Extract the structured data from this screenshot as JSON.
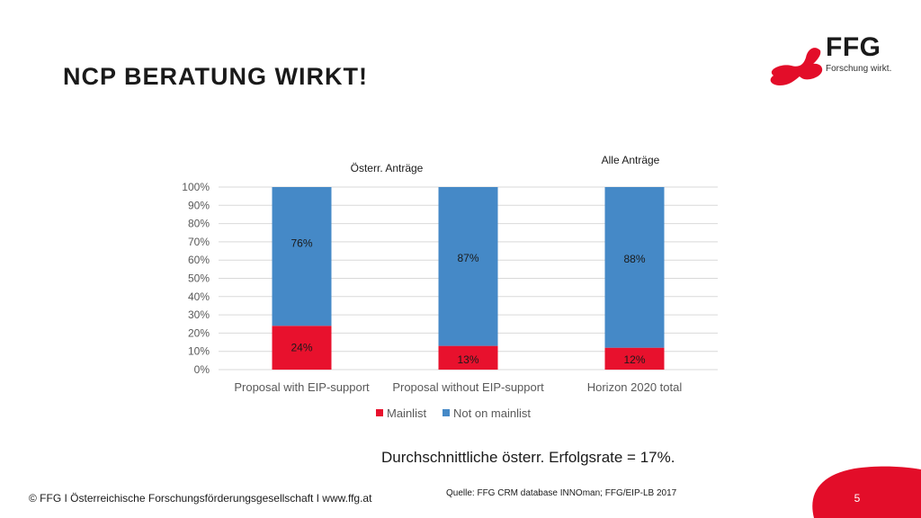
{
  "slide": {
    "title": "NCP BERATUNG WIRKT!",
    "logo_text": "FFG",
    "logo_tagline": "Forschung wirkt.",
    "note": "Durchschnittliche österr. Erfolgsrate = 17%.",
    "source": "Quelle: FFG CRM database INNOman; FFG/EIP-LB 2017",
    "footer": "© FFG I Österreichische Forschungsförderungsgesellschaft I www.ffg.at",
    "page_number": "5"
  },
  "colors": {
    "mainlist": "#e8112d",
    "not_on_mainlist": "#4589c7",
    "brand_red": "#e30d29",
    "grid": "#d9d9d9",
    "axis_text": "#595959"
  },
  "chart_data": {
    "type": "bar",
    "stacked": true,
    "categories": [
      "Proposal with EIP-support",
      "Proposal without EIP-support",
      "Horizon 2020 total"
    ],
    "series": [
      {
        "name": "Mainlist",
        "values": [
          24,
          13,
          12
        ],
        "labels": [
          "24%",
          "13%",
          "12%"
        ]
      },
      {
        "name": "Not on mainlist",
        "values": [
          76,
          87,
          88
        ],
        "labels": [
          "76%",
          "87%",
          "88%"
        ]
      }
    ],
    "ylim": [
      0,
      100
    ],
    "yticks": [
      "0%",
      "10%",
      "20%",
      "30%",
      "40%",
      "50%",
      "60%",
      "70%",
      "80%",
      "90%",
      "100%"
    ],
    "annotations": [
      "Österr. Anträge",
      "Alle Anträge"
    ],
    "legend": "bottom",
    "grid": true
  }
}
